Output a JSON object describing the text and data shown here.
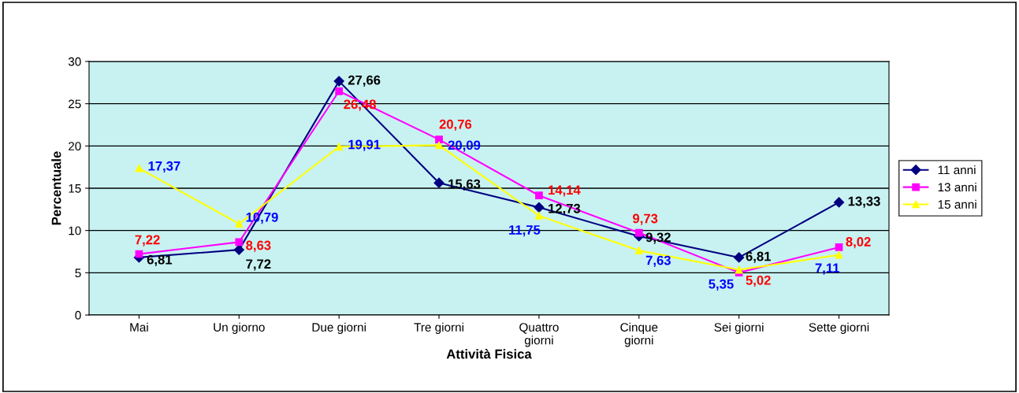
{
  "chart_data": {
    "type": "line",
    "xlabel": "Attività Fisica",
    "ylabel": "Percentuale",
    "categories": [
      "Mai",
      "Un giorno",
      "Due giorni",
      "Tre giorni",
      "Quattro\ngiorni",
      "Cinque\ngiorni",
      "Sei giorni",
      "Sette giorni"
    ],
    "series": [
      {
        "name": "11 anni",
        "color": "#000080",
        "marker": "diamond",
        "values": [
          6.81,
          7.72,
          27.66,
          15.63,
          12.73,
          9.32,
          6.81,
          13.33
        ],
        "value_labels": [
          "6,81",
          "7,72",
          "27,66",
          "15,63",
          "12,73",
          "9,32",
          "6,81",
          "13,33"
        ]
      },
      {
        "name": "13 anni",
        "color": "#ff00ff",
        "marker": "square",
        "values": [
          7.22,
          8.63,
          26.48,
          20.76,
          14.14,
          9.73,
          5.02,
          8.02
        ],
        "value_labels": [
          "7,22",
          "8,63",
          "26,48",
          "20,76",
          "14,14",
          "9,73",
          "5,02",
          "8,02"
        ]
      },
      {
        "name": "15 anni",
        "color": "#ffff00",
        "marker": "triangle",
        "values": [
          17.37,
          10.79,
          19.91,
          20.09,
          11.75,
          7.63,
          5.35,
          7.11
        ],
        "value_labels": [
          "17,37",
          "10,79",
          "19,91",
          "20,09",
          "11,75",
          "7,63",
          "5,35",
          "7,11"
        ]
      }
    ],
    "ylim": [
      0,
      30
    ],
    "yticks": [
      0,
      5,
      10,
      15,
      20,
      25,
      30
    ],
    "grid": "y",
    "legend": "right",
    "line_style": "solid"
  }
}
